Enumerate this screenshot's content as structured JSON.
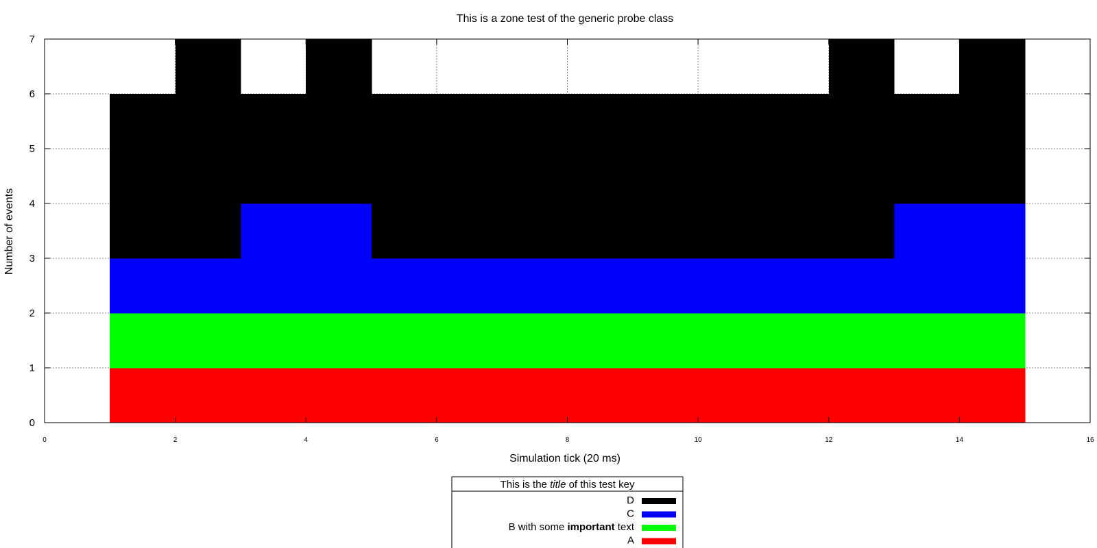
{
  "chart_data": {
    "type": "area",
    "title": "This is a zone test of the generic probe class",
    "xlabel": "Simulation tick (20 ms)",
    "ylabel": "Number of events",
    "xlim": [
      0,
      16
    ],
    "ylim": [
      0,
      7
    ],
    "x_ticks": [
      "0",
      "2",
      "4",
      "6",
      "8",
      "10",
      "12",
      "14",
      "16"
    ],
    "y_ticks": [
      "0",
      "1",
      "2",
      "3",
      "4",
      "5",
      "6",
      "7"
    ],
    "grid": true,
    "stacked": true,
    "step": true,
    "x": [
      1,
      2,
      3,
      4,
      5,
      6,
      7,
      8,
      9,
      10,
      11,
      12,
      13,
      14
    ],
    "series": [
      {
        "name": "A",
        "color": "#ff0000",
        "values": [
          1,
          1,
          1,
          1,
          1,
          1,
          1,
          1,
          1,
          1,
          1,
          1,
          1,
          1
        ]
      },
      {
        "name": "B with some important text",
        "color": "#00ff00",
        "values": [
          1,
          1,
          1,
          1,
          1,
          1,
          1,
          1,
          1,
          1,
          1,
          1,
          1,
          1
        ]
      },
      {
        "name": "C",
        "color": "#0000ff",
        "values": [
          1,
          1,
          2,
          2,
          1,
          1,
          1,
          1,
          1,
          1,
          1,
          1,
          2,
          2
        ]
      },
      {
        "name": "D",
        "color": "#000000",
        "values": [
          3,
          4,
          2,
          3,
          3,
          3,
          3,
          3,
          3,
          3,
          3,
          4,
          2,
          3
        ]
      }
    ],
    "legend": {
      "title_parts": [
        {
          "text": "This is the ",
          "style": "normal"
        },
        {
          "text": "title",
          "style": "italic"
        },
        {
          "text": " of this test key",
          "style": "normal"
        }
      ],
      "order": [
        "D",
        "C",
        "B with some important text",
        "A"
      ],
      "label_parts": {
        "B with some important text": [
          {
            "text": "B with some ",
            "style": "normal"
          },
          {
            "text": "important",
            "style": "bold"
          },
          {
            "text": " text",
            "style": "normal"
          }
        ]
      },
      "placement": "bottom-center"
    }
  }
}
